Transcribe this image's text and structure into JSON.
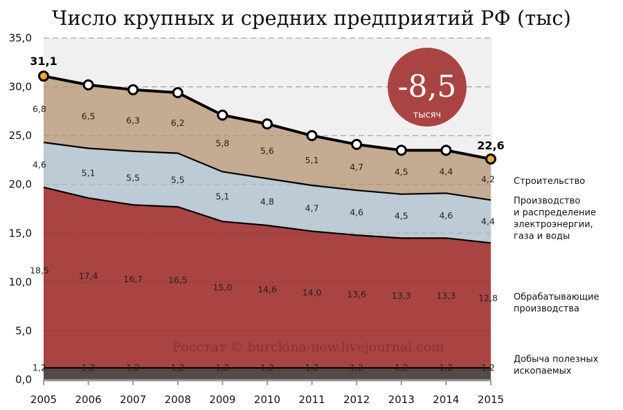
{
  "chart_data": {
    "type": "area",
    "stacked": true,
    "title": "Число крупных и средних предприятий РФ (тыс)",
    "x": [
      2005,
      2006,
      2007,
      2008,
      2009,
      2010,
      2011,
      2012,
      2013,
      2014,
      2015
    ],
    "ylim": [
      0,
      35
    ],
    "yticks": [
      "0,0",
      "5,0",
      "10,0",
      "15,0",
      "20,0",
      "25,0",
      "30,0",
      "35,0"
    ],
    "grid": true,
    "legend": "right",
    "series": [
      {
        "name": "Добыча полезных ископаемых",
        "legend_lines": [
          "Добыча полезных",
          "ископаемых"
        ],
        "color": "#564a46",
        "values": [
          1.2,
          1.2,
          1.2,
          1.2,
          1.2,
          1.2,
          1.2,
          1.2,
          1.2,
          1.2,
          1.2
        ],
        "labels": [
          "1,2",
          "1,2",
          "1,2",
          "1,2",
          "1,2",
          "1,2",
          "1,2",
          "1,2",
          "1,2",
          "1,2",
          "1,2"
        ]
      },
      {
        "name": "Обрабатывающие производства",
        "legend_lines": [
          "Обрабатывающие",
          "производства"
        ],
        "color": "#a94442",
        "values": [
          18.5,
          17.4,
          16.7,
          16.5,
          15.0,
          14.6,
          14.0,
          13.6,
          13.3,
          13.3,
          12.8
        ],
        "labels": [
          "18,5",
          "17,4",
          "16,7",
          "16,5",
          "15,0",
          "14,6",
          "14,0",
          "13,6",
          "13,3",
          "13,3",
          "12,8"
        ]
      },
      {
        "name": "Производство и распределение электроэнергии, газа и воды",
        "legend_lines": [
          "Производство",
          "и распределение",
          "электроэнергии,",
          "газа и воды"
        ],
        "color": "#bccbd6",
        "values": [
          4.6,
          5.1,
          5.5,
          5.5,
          5.1,
          4.8,
          4.7,
          4.6,
          4.5,
          4.6,
          4.4
        ],
        "labels": [
          "4,6",
          "5,1",
          "5,5",
          "5,5",
          "5,1",
          "4,8",
          "4,7",
          "4,6",
          "4,5",
          "4,6",
          "4,4"
        ]
      },
      {
        "name": "Строительство",
        "legend_lines": [
          "Строительство"
        ],
        "color": "#c4ab91",
        "values": [
          6.8,
          6.5,
          6.3,
          6.2,
          5.8,
          5.6,
          5.1,
          4.7,
          4.5,
          4.4,
          4.2
        ],
        "labels": [
          "6,8",
          "6,5",
          "6,3",
          "6,2",
          "5,8",
          "5,6",
          "5,1",
          "4,7",
          "4,5",
          "4,4",
          "4,2"
        ]
      }
    ],
    "totals": [
      31.1,
      30.2,
      29.7,
      29.4,
      27.1,
      26.2,
      25.0,
      24.1,
      23.5,
      23.5,
      22.6
    ],
    "total_labels": {
      "first": "31,1",
      "last": "22,6"
    },
    "highlight_color": "#f2a73b",
    "badge": {
      "value": "-8,5",
      "unit": "тысяч",
      "color": "#a94442"
    },
    "watermark": "Росстат © burckina-new.livejournal.com"
  }
}
